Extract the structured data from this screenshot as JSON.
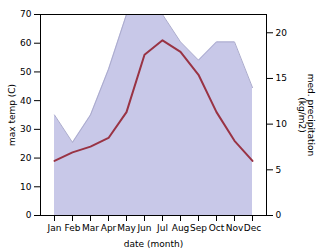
{
  "chart_data": {
    "type": "line",
    "categories": [
      "Jan",
      "Feb",
      "Mar",
      "Apr",
      "May",
      "Jun",
      "Jul",
      "Aug",
      "Sep",
      "Oct",
      "Nov",
      "Dec"
    ],
    "series": [
      {
        "type": "area",
        "axis": "y2",
        "color": "#c8c8e8",
        "values": [
          11,
          8,
          11,
          16,
          22,
          22,
          22,
          19,
          17,
          19,
          19,
          14
        ]
      },
      {
        "type": "line",
        "axis": "y2",
        "color": "#aaaacc",
        "values": [
          11,
          8,
          11,
          16,
          22,
          22,
          22,
          19,
          17,
          19,
          19,
          14
        ]
      },
      {
        "type": "line",
        "color": "#993344",
        "values": [
          19,
          22,
          24,
          27,
          36,
          56,
          61,
          57,
          49,
          36,
          26,
          19
        ]
      }
    ],
    "xlabel": "date (month)",
    "ylabel": "max temp (C)",
    "y2label": "med. precipitation\n(kg/m2)",
    "ylim": [
      0,
      70
    ],
    "yticks": [
      0,
      10,
      20,
      30,
      40,
      50,
      60,
      70
    ],
    "y2lim": [
      0,
      22
    ],
    "y2ticks": [
      0,
      5,
      10,
      15,
      20
    ],
    "grid": false
  }
}
